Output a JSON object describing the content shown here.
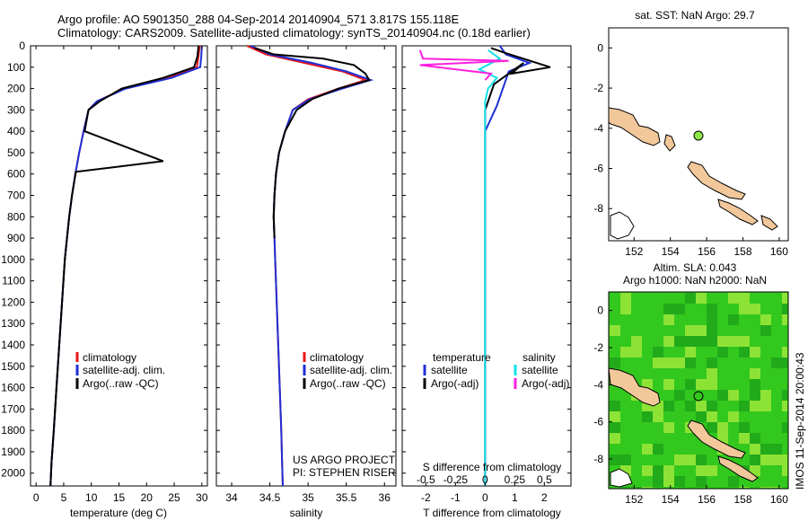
{
  "header": {
    "line1": "Argo profile: AO 5901350_288 04-Sep-2014 20140904_571 3.817S 155.118E",
    "line2": "Climatology: CARS2009. Satellite-adjusted climatology: synTS_20140904.nc (0.18d earlier)"
  },
  "colors": {
    "climatology": "#e8151b",
    "satellite": "#1f2fd6",
    "argo": "#000000",
    "sat_salinity": "#14e0e8",
    "argo_salinity": "#ff1fe0",
    "land": "#f2c89b",
    "sla_green": "#34c81e",
    "sla_green_light": "#9ee83a",
    "sla_green_dark": "#1fa51a",
    "argo_dot_sst": "#8ee84a"
  },
  "depth_axis": {
    "ticks": [
      "0",
      "100",
      "200",
      "300",
      "400",
      "500",
      "600",
      "700",
      "800",
      "900",
      "1000",
      "1100",
      "1200",
      "1300",
      "1400",
      "1500",
      "1600",
      "1700",
      "1800",
      "1900",
      "2000"
    ]
  },
  "panels": {
    "temperature": {
      "xlabel": "temperature (deg C)",
      "xticks": [
        "0",
        "5",
        "10",
        "15",
        "20",
        "25",
        "30"
      ],
      "legend": [
        "climatology",
        "satellite-adj. clim.",
        "Argo(..raw -QC)"
      ]
    },
    "salinity": {
      "xlabel": "salinity",
      "xticks": [
        "34",
        "34.5",
        "35",
        "35.5",
        "36"
      ],
      "legend": [
        "climatology",
        "satellite-adj. clim.",
        "Argo(..raw -QC)"
      ],
      "project": "US ARGO PROJECT",
      "pi": "PI: STEPHEN RISER"
    },
    "difference": {
      "col_temperature": "temperature",
      "col_salinity": "salinity",
      "legend_t": [
        "satellite",
        "Argo(-adj)"
      ],
      "legend_s": [
        "satellite",
        "Argo(-adj)"
      ],
      "top_label": "S difference from climatology",
      "top_ticks": [
        "-0.5",
        "-0.25",
        "0",
        "0.25",
        "0.5"
      ],
      "xlabel": "T difference from climatology",
      "xticks": [
        "-2",
        "-1",
        "0",
        "1",
        "2"
      ]
    }
  },
  "maps": {
    "sst_title": "sat. SST: NaN Argo: 29.7",
    "sla_title1": "Altim. SLA: 0.043",
    "sla_title2": "Argo h1000: NaN h2000: NaN",
    "lat_ticks": [
      "0",
      "-2",
      "-4",
      "-6",
      "-8"
    ],
    "lon_ticks": [
      "152",
      "154",
      "156",
      "158",
      "160"
    ]
  },
  "footer": {
    "stamp": "IMOS 11-Sep-2014 20:00:43"
  },
  "chart_data": [
    {
      "type": "line",
      "title": "Argo profile: AO 5901350_288 04-Sep-2014 20140904_571 3.817S 155.118E",
      "xlabel": "temperature (deg C)",
      "ylabel": "",
      "xlim": [
        -1,
        31
      ],
      "ylim": [
        2060,
        0
      ],
      "series": [
        {
          "name": "climatology",
          "points": [
            [
              29.6,
              0
            ],
            [
              29.4,
              50
            ],
            [
              29.1,
              100
            ],
            [
              24,
              150
            ],
            [
              16,
              200
            ],
            [
              11,
              260
            ],
            [
              9.5,
              300
            ],
            [
              8.6,
              400
            ],
            [
              7.8,
              500
            ],
            [
              7.1,
              600
            ],
            [
              6.5,
              700
            ],
            [
              6,
              800
            ],
            [
              5.6,
              900
            ],
            [
              5.2,
              1000
            ],
            [
              4.7,
              1200
            ],
            [
              4.2,
              1400
            ],
            [
              3.7,
              1600
            ],
            [
              3.2,
              1800
            ],
            [
              2.8,
              1950
            ],
            [
              2.6,
              2060
            ]
          ]
        },
        {
          "name": "satellite-adj. clim.",
          "points": [
            [
              30,
              0
            ],
            [
              29.9,
              50
            ],
            [
              29.7,
              100
            ],
            [
              24.5,
              150
            ],
            [
              16.2,
              200
            ],
            [
              11,
              260
            ],
            [
              9.5,
              300
            ],
            [
              8.6,
              400
            ],
            [
              7.8,
              500
            ],
            [
              7.1,
              600
            ],
            [
              6.5,
              700
            ],
            [
              6,
              800
            ],
            [
              5.6,
              900
            ],
            [
              5.2,
              1000
            ],
            [
              4.7,
              1200
            ],
            [
              4.2,
              1400
            ],
            [
              3.7,
              1600
            ],
            [
              3.2,
              1800
            ],
            [
              2.8,
              1950
            ],
            [
              2.6,
              2060
            ]
          ]
        },
        {
          "name": "Argo(..raw -QC)",
          "points": [
            [
              29.4,
              0
            ],
            [
              29.2,
              50
            ],
            [
              28.6,
              100
            ],
            [
              23,
              150
            ],
            [
              15.5,
              200
            ],
            [
              11.5,
              260
            ],
            [
              9.5,
              300
            ],
            [
              8.8,
              400
            ],
            [
              23,
              540
            ],
            [
              7.2,
              590
            ],
            [
              6.5,
              700
            ],
            [
              6,
              800
            ],
            [
              5.6,
              900
            ],
            [
              5.2,
              1000
            ],
            [
              4.7,
              1200
            ],
            [
              4.2,
              1400
            ],
            [
              3.7,
              1600
            ],
            [
              3.2,
              1800
            ],
            [
              2.8,
              1950
            ],
            [
              2.6,
              2060
            ]
          ]
        }
      ]
    },
    {
      "type": "line",
      "xlabel": "salinity",
      "ylabel": "",
      "xlim": [
        33.8,
        36.15
      ],
      "ylim": [
        2060,
        0
      ],
      "series": [
        {
          "name": "climatology",
          "points": [
            [
              34.2,
              0
            ],
            [
              34.45,
              40
            ],
            [
              34.95,
              80
            ],
            [
              35.45,
              120
            ],
            [
              35.75,
              160
            ],
            [
              35.4,
              200
            ],
            [
              35,
              250
            ],
            [
              34.8,
              300
            ],
            [
              34.7,
              400
            ],
            [
              34.62,
              500
            ],
            [
              34.58,
              600
            ],
            [
              34.56,
              700
            ],
            [
              34.55,
              800
            ],
            [
              34.56,
              900
            ],
            [
              34.57,
              1000
            ],
            [
              34.59,
              1200
            ],
            [
              34.61,
              1400
            ],
            [
              34.63,
              1600
            ],
            [
              34.65,
              1800
            ],
            [
              34.66,
              1950
            ],
            [
              34.67,
              2060
            ]
          ]
        },
        {
          "name": "satellite-adj. clim.",
          "points": [
            [
              34.25,
              0
            ],
            [
              34.5,
              40
            ],
            [
              35.05,
              80
            ],
            [
              35.5,
              120
            ],
            [
              35.82,
              160
            ],
            [
              35.45,
              200
            ],
            [
              35.02,
              250
            ],
            [
              34.8,
              300
            ],
            [
              34.7,
              400
            ],
            [
              34.62,
              500
            ],
            [
              34.58,
              600
            ],
            [
              34.56,
              700
            ],
            [
              34.55,
              800
            ],
            [
              34.56,
              900
            ],
            [
              34.57,
              1000
            ],
            [
              34.59,
              1200
            ],
            [
              34.61,
              1400
            ],
            [
              34.63,
              1600
            ],
            [
              34.65,
              1800
            ],
            [
              34.66,
              1950
            ],
            [
              34.67,
              2060
            ]
          ]
        },
        {
          "name": "Argo(..raw -QC)",
          "points": [
            [
              34.3,
              10
            ],
            [
              34.55,
              40
            ],
            [
              35.2,
              60
            ],
            [
              35.6,
              90
            ],
            [
              35.75,
              130
            ],
            [
              35.8,
              160
            ],
            [
              35.4,
              200
            ],
            [
              35.05,
              250
            ],
            [
              34.85,
              300
            ],
            [
              34.7,
              400
            ],
            [
              34.62,
              500
            ],
            [
              34.58,
              600
            ],
            [
              34.56,
              700
            ],
            [
              34.55,
              800
            ],
            [
              34.56,
              900
            ]
          ]
        }
      ]
    },
    {
      "type": "line",
      "xlabel": "T difference from climatology",
      "ylabel": "",
      "xlim": [
        -2.8,
        2.9
      ],
      "ylim": [
        2060,
        0
      ],
      "series": [
        {
          "name": "satellite (temperature)",
          "points": [
            [
              0.5,
              0
            ],
            [
              0.7,
              40
            ],
            [
              1.5,
              80
            ],
            [
              0.8,
              120
            ],
            [
              0.6,
              200
            ],
            [
              0.4,
              280
            ],
            [
              0,
              400
            ],
            [
              0,
              2060
            ]
          ]
        },
        {
          "name": "Argo(-adj) (temperature)",
          "points": [
            [
              0.2,
              10
            ],
            [
              0.6,
              30
            ],
            [
              2.2,
              100
            ],
            [
              0.9,
              130
            ],
            [
              1.3,
              80
            ],
            [
              0.3,
              180
            ],
            [
              0,
              300
            ],
            [
              0,
              2060
            ]
          ]
        },
        {
          "name": "satellite (salinity)",
          "points": [
            [
              0.1,
              20
            ],
            [
              0.5,
              60
            ],
            [
              -0.2,
              110
            ],
            [
              0.4,
              150
            ],
            [
              0.1,
              200
            ],
            [
              0,
              260
            ],
            [
              0,
              2060
            ]
          ]
        },
        {
          "name": "Argo(-adj) (salinity)",
          "points": [
            [
              -2.2,
              20
            ],
            [
              -2.1,
              60
            ],
            [
              0.8,
              70
            ],
            [
              -2.2,
              90
            ],
            [
              0.2,
              130
            ],
            [
              0,
              160
            ]
          ]
        }
      ]
    }
  ]
}
